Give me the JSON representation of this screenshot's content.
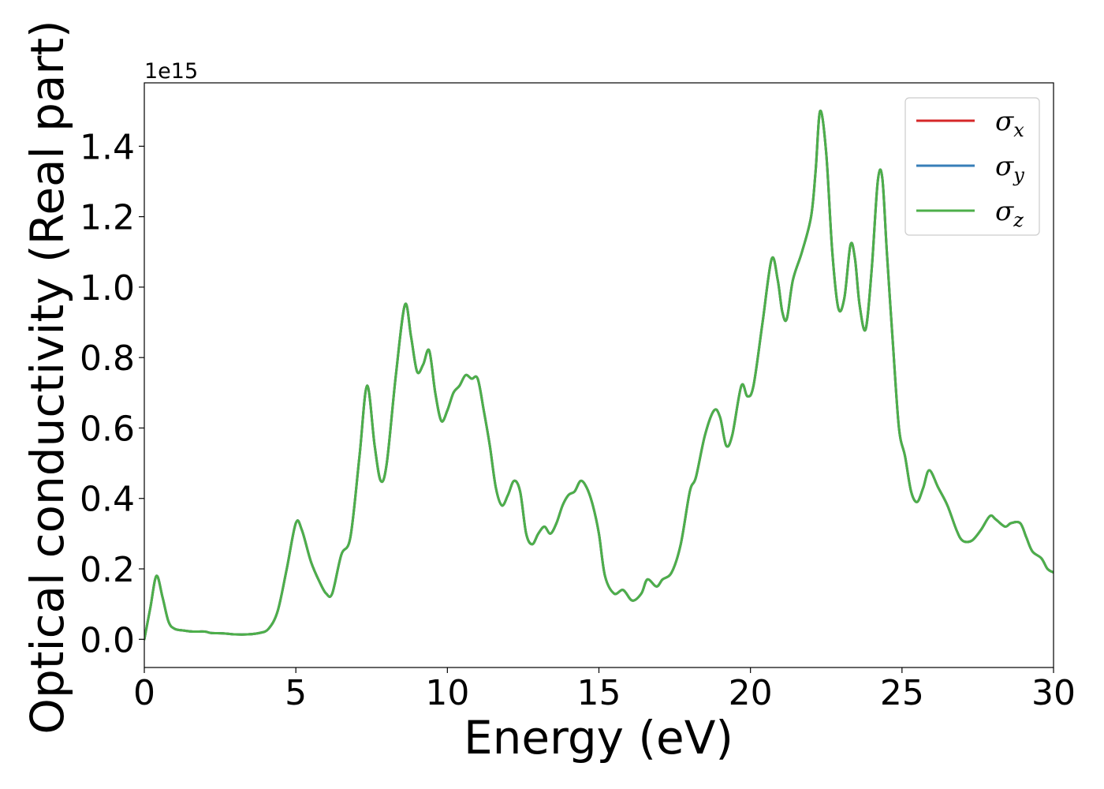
{
  "chart_data": {
    "type": "line",
    "xlabel": "Energy (eV)",
    "ylabel": "Optical conductivity (Real part)",
    "y_offset_text": "1e15",
    "y_multiplier": 1000000000000000.0,
    "xlim": [
      0,
      30
    ],
    "ylim": [
      -0.08,
      1.58
    ],
    "x_ticks": [
      0,
      5,
      10,
      15,
      20,
      25,
      30
    ],
    "x_tick_labels": [
      "0",
      "5",
      "10",
      "15",
      "20",
      "25",
      "30"
    ],
    "y_ticks": [
      0.0,
      0.2,
      0.4,
      0.6,
      0.8,
      1.0,
      1.2,
      1.4
    ],
    "y_tick_labels": [
      "0.0",
      "0.2",
      "0.4",
      "0.6",
      "0.8",
      "1.0",
      "1.2",
      "1.4"
    ],
    "grid": false,
    "legend_position": "top-right",
    "x": [
      0.0,
      0.2,
      0.4,
      0.6,
      0.8,
      1.0,
      1.3,
      1.6,
      2.0,
      2.2,
      2.6,
      3.0,
      3.4,
      3.8,
      4.1,
      4.4,
      4.7,
      5.0,
      5.2,
      5.5,
      5.8,
      6.0,
      6.2,
      6.5,
      6.8,
      7.1,
      7.35,
      7.6,
      7.8,
      8.0,
      8.3,
      8.6,
      8.8,
      9.0,
      9.2,
      9.4,
      9.6,
      9.8,
      10.0,
      10.2,
      10.4,
      10.6,
      10.8,
      11.0,
      11.2,
      11.4,
      11.6,
      11.8,
      12.0,
      12.2,
      12.4,
      12.6,
      12.8,
      13.0,
      13.2,
      13.4,
      13.6,
      13.8,
      14.0,
      14.2,
      14.4,
      14.6,
      14.8,
      15.0,
      15.2,
      15.5,
      15.8,
      16.1,
      16.4,
      16.6,
      16.9,
      17.1,
      17.4,
      17.7,
      18.0,
      18.2,
      18.5,
      18.8,
      19.0,
      19.2,
      19.4,
      19.7,
      19.9,
      20.1,
      20.4,
      20.7,
      20.9,
      21.05,
      21.2,
      21.4,
      21.7,
      22.0,
      22.15,
      22.3,
      22.5,
      22.7,
      22.9,
      23.1,
      23.3,
      23.45,
      23.6,
      23.8,
      24.0,
      24.2,
      24.35,
      24.5,
      24.7,
      24.9,
      25.1,
      25.3,
      25.5,
      25.7,
      25.9,
      26.2,
      26.5,
      26.8,
      27.0,
      27.3,
      27.6,
      27.9,
      28.1,
      28.4,
      28.6,
      28.9,
      29.1,
      29.3,
      29.6,
      29.8,
      30.0
    ],
    "series": [
      {
        "name": "σx",
        "label_base": "σ",
        "label_sub": "x",
        "color": "#d62728",
        "values": [
          0.0,
          0.09,
          0.18,
          0.12,
          0.05,
          0.03,
          0.025,
          0.022,
          0.022,
          0.018,
          0.017,
          0.014,
          0.014,
          0.018,
          0.03,
          0.08,
          0.2,
          0.33,
          0.31,
          0.22,
          0.16,
          0.13,
          0.13,
          0.24,
          0.29,
          0.52,
          0.72,
          0.55,
          0.45,
          0.5,
          0.75,
          0.95,
          0.86,
          0.76,
          0.78,
          0.82,
          0.7,
          0.62,
          0.65,
          0.7,
          0.72,
          0.75,
          0.74,
          0.74,
          0.65,
          0.55,
          0.43,
          0.38,
          0.41,
          0.45,
          0.42,
          0.3,
          0.27,
          0.3,
          0.32,
          0.3,
          0.33,
          0.38,
          0.41,
          0.42,
          0.45,
          0.43,
          0.38,
          0.3,
          0.18,
          0.13,
          0.14,
          0.11,
          0.13,
          0.17,
          0.15,
          0.17,
          0.19,
          0.27,
          0.42,
          0.46,
          0.58,
          0.65,
          0.63,
          0.55,
          0.58,
          0.72,
          0.69,
          0.72,
          0.9,
          1.08,
          1.02,
          0.93,
          0.91,
          1.02,
          1.1,
          1.2,
          1.33,
          1.5,
          1.38,
          1.1,
          0.94,
          0.97,
          1.12,
          1.08,
          0.95,
          0.88,
          1.05,
          1.3,
          1.31,
          1.1,
          0.84,
          0.6,
          0.52,
          0.42,
          0.39,
          0.43,
          0.48,
          0.43,
          0.38,
          0.31,
          0.28,
          0.28,
          0.31,
          0.35,
          0.34,
          0.32,
          0.33,
          0.33,
          0.29,
          0.25,
          0.23,
          0.2,
          0.19
        ]
      },
      {
        "name": "σy",
        "label_base": "σ",
        "label_sub": "y",
        "color": "#377eb8",
        "values": [
          0.0,
          0.09,
          0.18,
          0.12,
          0.05,
          0.03,
          0.025,
          0.022,
          0.022,
          0.018,
          0.017,
          0.014,
          0.014,
          0.018,
          0.03,
          0.08,
          0.2,
          0.33,
          0.31,
          0.22,
          0.16,
          0.13,
          0.13,
          0.24,
          0.29,
          0.52,
          0.72,
          0.55,
          0.45,
          0.5,
          0.75,
          0.95,
          0.86,
          0.76,
          0.78,
          0.82,
          0.7,
          0.62,
          0.65,
          0.7,
          0.72,
          0.75,
          0.74,
          0.74,
          0.65,
          0.55,
          0.43,
          0.38,
          0.41,
          0.45,
          0.42,
          0.3,
          0.27,
          0.3,
          0.32,
          0.3,
          0.33,
          0.38,
          0.41,
          0.42,
          0.45,
          0.43,
          0.38,
          0.3,
          0.18,
          0.13,
          0.14,
          0.11,
          0.13,
          0.17,
          0.15,
          0.17,
          0.19,
          0.27,
          0.42,
          0.46,
          0.58,
          0.65,
          0.63,
          0.55,
          0.58,
          0.72,
          0.69,
          0.72,
          0.9,
          1.08,
          1.02,
          0.93,
          0.91,
          1.02,
          1.1,
          1.2,
          1.33,
          1.5,
          1.38,
          1.1,
          0.94,
          0.97,
          1.12,
          1.08,
          0.95,
          0.88,
          1.05,
          1.3,
          1.31,
          1.1,
          0.84,
          0.6,
          0.52,
          0.42,
          0.39,
          0.43,
          0.48,
          0.43,
          0.38,
          0.31,
          0.28,
          0.28,
          0.31,
          0.35,
          0.34,
          0.32,
          0.33,
          0.33,
          0.29,
          0.25,
          0.23,
          0.2,
          0.19
        ]
      },
      {
        "name": "σz",
        "label_base": "σ",
        "label_sub": "z",
        "color": "#4daf4a",
        "values": [
          0.0,
          0.09,
          0.18,
          0.12,
          0.05,
          0.03,
          0.025,
          0.022,
          0.022,
          0.018,
          0.017,
          0.014,
          0.014,
          0.018,
          0.03,
          0.08,
          0.2,
          0.33,
          0.31,
          0.22,
          0.16,
          0.13,
          0.13,
          0.24,
          0.29,
          0.52,
          0.72,
          0.55,
          0.45,
          0.5,
          0.75,
          0.95,
          0.86,
          0.76,
          0.78,
          0.82,
          0.7,
          0.62,
          0.65,
          0.7,
          0.72,
          0.75,
          0.74,
          0.74,
          0.65,
          0.55,
          0.43,
          0.38,
          0.41,
          0.45,
          0.42,
          0.3,
          0.27,
          0.3,
          0.32,
          0.3,
          0.33,
          0.38,
          0.41,
          0.42,
          0.45,
          0.43,
          0.38,
          0.3,
          0.18,
          0.13,
          0.14,
          0.11,
          0.13,
          0.17,
          0.15,
          0.17,
          0.19,
          0.27,
          0.42,
          0.46,
          0.58,
          0.65,
          0.63,
          0.55,
          0.58,
          0.72,
          0.69,
          0.72,
          0.9,
          1.08,
          1.02,
          0.93,
          0.91,
          1.02,
          1.1,
          1.2,
          1.33,
          1.5,
          1.38,
          1.1,
          0.94,
          0.97,
          1.12,
          1.08,
          0.95,
          0.88,
          1.05,
          1.3,
          1.31,
          1.1,
          0.84,
          0.6,
          0.52,
          0.42,
          0.39,
          0.43,
          0.48,
          0.43,
          0.38,
          0.31,
          0.28,
          0.28,
          0.31,
          0.35,
          0.34,
          0.32,
          0.33,
          0.33,
          0.29,
          0.25,
          0.23,
          0.2,
          0.19
        ]
      }
    ]
  }
}
